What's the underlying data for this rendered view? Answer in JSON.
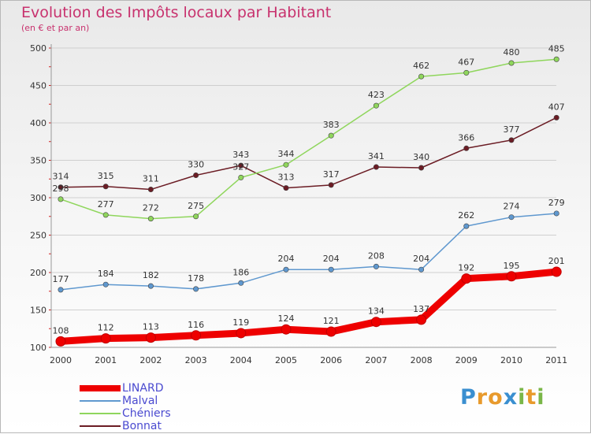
{
  "chart_data": {
    "type": "line",
    "title": "Evolution des Impôts locaux par Habitant",
    "subtitle": "(en € et par an)",
    "categories": [
      "2000",
      "2001",
      "2002",
      "2003",
      "2004",
      "2005",
      "2006",
      "2007",
      "2008",
      "2009",
      "2010",
      "2011"
    ],
    "ylim": [
      100,
      500
    ],
    "yticks": [
      100,
      150,
      200,
      250,
      300,
      350,
      400,
      450,
      500
    ],
    "series": [
      {
        "name": "LINARD",
        "color": "#ee0000",
        "values": [
          108,
          112,
          113,
          116,
          119,
          124,
          121,
          134,
          137,
          192,
          195,
          201
        ]
      },
      {
        "name": "Malval",
        "color": "#5f98cf",
        "values": [
          177,
          184,
          182,
          178,
          186,
          204,
          204,
          208,
          204,
          262,
          274,
          279
        ]
      },
      {
        "name": "Chéniers",
        "color": "#8fd65c",
        "values": [
          298,
          277,
          272,
          275,
          327,
          344,
          383,
          423,
          462,
          467,
          480,
          485
        ]
      },
      {
        "name": "Bonnat",
        "color": "#6b1c24",
        "values": [
          314,
          315,
          311,
          330,
          343,
          313,
          317,
          341,
          340,
          366,
          377,
          407
        ]
      }
    ]
  },
  "logo": {
    "text": "Proxiti",
    "letters": [
      "P",
      "r",
      "o",
      "x",
      "i",
      "t",
      "i"
    ],
    "colors": [
      "#3a8fd0",
      "#e89a2c",
      "#e89a2c",
      "#3a8fd0",
      "#7ab648",
      "#e89a2c",
      "#7ab648"
    ]
  }
}
